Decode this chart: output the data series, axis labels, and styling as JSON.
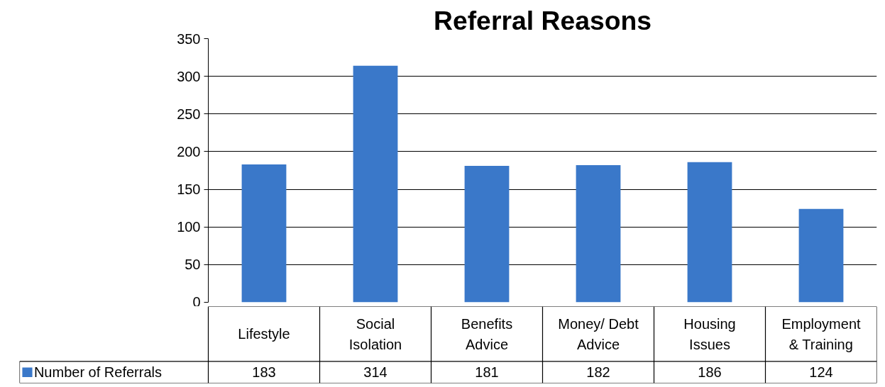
{
  "chart_data": {
    "type": "bar",
    "title": "Referral Reasons",
    "categories": [
      "Lifestyle",
      "Social Isolation",
      "Benefits Advice",
      "Money/ Debt Advice",
      "Housing Issues",
      "Employment & Training"
    ],
    "series": [
      {
        "name": "Number of Referrals",
        "color": "#3a78c9",
        "values": [
          183,
          314,
          181,
          182,
          186,
          124
        ]
      }
    ],
    "ylim": [
      0,
      350
    ],
    "yticks": [
      0,
      50,
      100,
      150,
      200,
      250,
      300,
      350
    ],
    "grid": "y",
    "legend": "bottom left",
    "data_labels": true
  }
}
